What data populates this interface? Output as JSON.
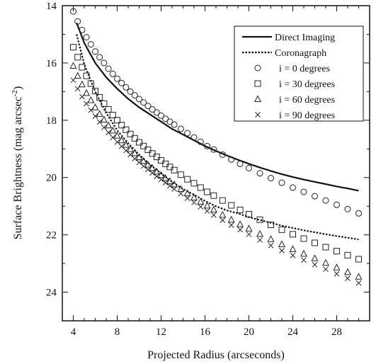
{
  "chart_data": {
    "type": "line",
    "xlabel": "Projected Radius (arcseconds)",
    "ylabel": "Surface Brightness (mag arcsec",
    "ylabel_superscript": "-2",
    "ylabel_close": ")",
    "xlim": [
      3,
      31
    ],
    "ylim": [
      25,
      14
    ],
    "y_inverted": true,
    "xticks": [
      "4",
      "8",
      "12",
      "16",
      "20",
      "24",
      "28"
    ],
    "yticks": [
      "14",
      "16",
      "18",
      "20",
      "22",
      "24"
    ],
    "grid": false,
    "legend_position": "top-right",
    "line_series": [
      {
        "name": "Direct Imaging",
        "style": "solid",
        "x": [
          4.3,
          5,
          6,
          7,
          8,
          9,
          10,
          11,
          12,
          13,
          14,
          15,
          16,
          17,
          18,
          19,
          20,
          21,
          22,
          23,
          24,
          25,
          26,
          27,
          28,
          29,
          30
        ],
        "y": [
          14.6,
          15.3,
          16.0,
          16.5,
          16.9,
          17.25,
          17.55,
          17.8,
          18.05,
          18.3,
          18.5,
          18.7,
          18.9,
          19.07,
          19.23,
          19.38,
          19.52,
          19.65,
          19.77,
          19.88,
          19.98,
          20.07,
          20.15,
          20.23,
          20.31,
          20.38,
          20.46
        ]
      },
      {
        "name": "Coronagraph",
        "style": "dotted",
        "x": [
          4.3,
          5,
          6,
          7,
          8,
          9,
          10,
          11,
          12,
          13,
          14,
          15,
          16,
          17,
          18,
          19,
          20,
          21,
          22,
          23,
          24,
          25,
          26,
          27,
          28,
          29,
          30
        ],
        "y": [
          15.0,
          16.05,
          17.0,
          17.75,
          18.35,
          18.8,
          19.2,
          19.55,
          19.85,
          20.15,
          20.4,
          20.6,
          20.82,
          21.0,
          21.15,
          21.25,
          21.38,
          21.48,
          21.58,
          21.68,
          21.76,
          21.84,
          21.91,
          21.98,
          22.04,
          22.1,
          22.16
        ]
      }
    ],
    "marker_series": [
      {
        "name": "i = 0 degrees",
        "marker": "circle",
        "x": [
          4.0,
          4.4,
          4.8,
          5.2,
          5.6,
          6.0,
          6.4,
          6.8,
          7.2,
          7.6,
          8.0,
          8.4,
          8.8,
          9.2,
          9.6,
          10.0,
          10.4,
          10.8,
          11.2,
          11.6,
          12.0,
          12.4,
          12.8,
          13.2,
          13.8,
          14.4,
          15.0,
          15.6,
          16.2,
          16.8,
          17.6,
          18.4,
          19.2,
          20.0,
          21.0,
          22.0,
          23.0,
          24.0,
          25.0,
          26.0,
          27.0,
          28.0,
          29.0,
          30.0
        ],
        "y": [
          14.2,
          14.55,
          14.85,
          15.1,
          15.35,
          15.6,
          15.8,
          16.0,
          16.2,
          16.38,
          16.55,
          16.7,
          16.85,
          17.0,
          17.13,
          17.26,
          17.38,
          17.5,
          17.62,
          17.73,
          17.84,
          17.95,
          18.05,
          18.15,
          18.3,
          18.45,
          18.6,
          18.75,
          18.9,
          19.02,
          19.2,
          19.37,
          19.52,
          19.67,
          19.85,
          20.02,
          20.18,
          20.35,
          20.5,
          20.65,
          20.8,
          20.95,
          21.1,
          21.25
        ]
      },
      {
        "name": "i = 30 degrees",
        "marker": "square",
        "x": [
          4.0,
          4.4,
          4.8,
          5.2,
          5.6,
          6.0,
          6.4,
          6.8,
          7.2,
          7.6,
          8.0,
          8.4,
          8.8,
          9.2,
          9.6,
          10.0,
          10.4,
          10.8,
          11.2,
          11.6,
          12.0,
          12.4,
          12.8,
          13.2,
          13.8,
          14.4,
          15.0,
          15.6,
          16.2,
          16.8,
          17.6,
          18.4,
          19.2,
          20.0,
          21.0,
          22.0,
          23.0,
          24.0,
          25.0,
          26.0,
          27.0,
          28.0,
          29.0,
          30.0
        ],
        "y": [
          15.45,
          15.8,
          16.15,
          16.45,
          16.72,
          16.98,
          17.2,
          17.42,
          17.62,
          17.82,
          18.0,
          18.17,
          18.33,
          18.48,
          18.63,
          18.77,
          18.9,
          19.03,
          19.16,
          19.28,
          19.4,
          19.52,
          19.63,
          19.74,
          19.9,
          20.06,
          20.2,
          20.35,
          20.5,
          20.63,
          20.8,
          20.97,
          21.13,
          21.28,
          21.47,
          21.65,
          21.82,
          21.98,
          22.13,
          22.28,
          22.43,
          22.57,
          22.71,
          22.85
        ]
      },
      {
        "name": "i = 60 degrees",
        "marker": "triangle",
        "x": [
          4.0,
          4.4,
          4.8,
          5.2,
          5.6,
          6.0,
          6.4,
          6.8,
          7.2,
          7.6,
          8.0,
          8.4,
          8.8,
          9.2,
          9.6,
          10.0,
          10.4,
          10.8,
          11.2,
          11.6,
          12.0,
          12.4,
          12.8,
          13.2,
          13.8,
          14.4,
          15.0,
          15.6,
          16.2,
          16.8,
          17.6,
          18.4,
          19.2,
          20.0,
          21.0,
          22.0,
          23.0,
          24.0,
          25.0,
          26.0,
          27.0,
          28.0,
          29.0,
          30.0
        ],
        "y": [
          16.1,
          16.45,
          16.75,
          17.05,
          17.3,
          17.55,
          17.78,
          17.98,
          18.18,
          18.36,
          18.54,
          18.7,
          18.86,
          19.01,
          19.15,
          19.29,
          19.42,
          19.55,
          19.67,
          19.79,
          19.91,
          20.02,
          20.13,
          20.24,
          20.4,
          20.55,
          20.7,
          20.84,
          20.98,
          21.12,
          21.3,
          21.47,
          21.63,
          21.78,
          21.97,
          22.15,
          22.33,
          22.5,
          22.66,
          22.82,
          22.98,
          23.14,
          23.3,
          23.46
        ]
      },
      {
        "name": "i = 90 degrees",
        "marker": "cross",
        "x": [
          4.0,
          4.4,
          4.8,
          5.2,
          5.6,
          6.0,
          6.4,
          6.8,
          7.2,
          7.6,
          8.0,
          8.4,
          8.8,
          9.2,
          9.6,
          10.0,
          10.4,
          10.8,
          11.2,
          11.6,
          12.0,
          12.4,
          12.8,
          13.2,
          13.8,
          14.4,
          15.0,
          15.6,
          16.2,
          16.8,
          17.6,
          18.4,
          19.2,
          20.0,
          21.0,
          22.0,
          23.0,
          24.0,
          25.0,
          26.0,
          27.0,
          28.0,
          29.0,
          30.0
        ],
        "y": [
          16.6,
          16.9,
          17.18,
          17.42,
          17.65,
          17.86,
          18.06,
          18.25,
          18.43,
          18.6,
          18.76,
          18.91,
          19.06,
          19.2,
          19.34,
          19.47,
          19.6,
          19.72,
          19.84,
          19.96,
          20.07,
          20.18,
          20.29,
          20.4,
          20.56,
          20.72,
          20.87,
          21.02,
          21.17,
          21.31,
          21.49,
          21.66,
          21.82,
          21.98,
          22.18,
          22.37,
          22.55,
          22.72,
          22.88,
          23.04,
          23.2,
          23.36,
          23.52,
          23.68
        ]
      }
    ]
  }
}
